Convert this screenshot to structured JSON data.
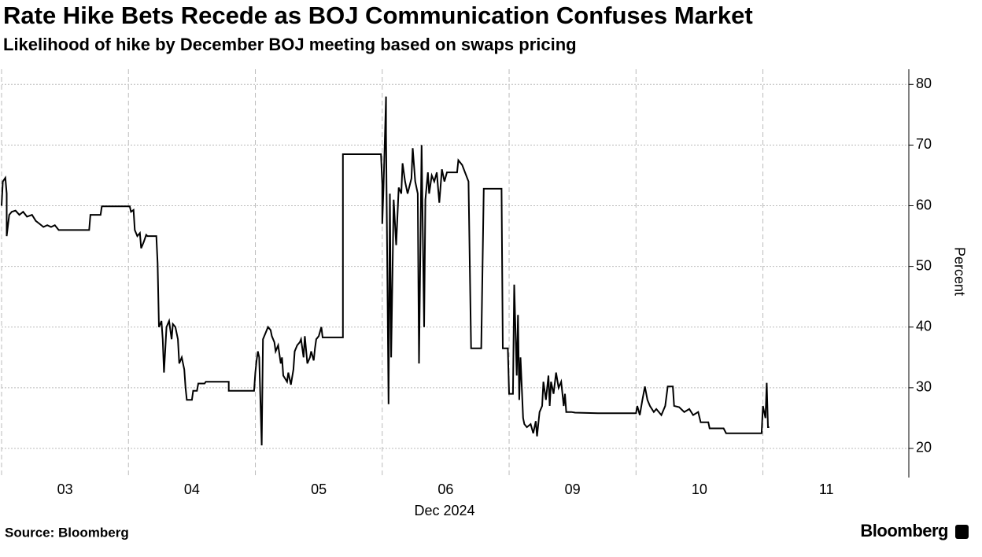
{
  "chart_data": {
    "type": "line",
    "title": "Rate Hike Bets Recede as BOJ Communication Confuses Market",
    "subtitle": "Likelihood of hike by December BOJ meeting based on swaps pricing",
    "y_label": "Percent",
    "x_label": "Dec 2024",
    "source": "Source: Bloomberg",
    "logo": "Bloomberg",
    "color": "#000000",
    "grid": true,
    "xlim": [
      0,
      7.15
    ],
    "xticks": [
      {
        "value": 0.5,
        "label": "03"
      },
      {
        "value": 1.5,
        "label": "04"
      },
      {
        "value": 2.5,
        "label": "05"
      },
      {
        "value": 3.5,
        "label": "06"
      },
      {
        "value": 4.5,
        "label": "09"
      },
      {
        "value": 5.5,
        "label": "10"
      },
      {
        "value": 6.5,
        "label": "11"
      }
    ],
    "ylim": [
      15.2,
      82.5
    ],
    "yticks": [
      20,
      30,
      40,
      50,
      60,
      70,
      80
    ],
    "x": [
      0.0,
      0.01,
      0.03,
      0.04,
      0.04,
      0.06,
      0.08,
      0.11,
      0.14,
      0.17,
      0.2,
      0.24,
      0.27,
      0.3,
      0.33,
      0.36,
      0.39,
      0.42,
      0.45,
      0.69,
      0.7,
      0.78,
      0.79,
      1.01,
      1.02,
      1.04,
      1.05,
      1.07,
      1.09,
      1.1,
      1.12,
      1.14,
      1.15,
      1.22,
      1.23,
      1.24,
      1.26,
      1.27,
      1.28,
      1.3,
      1.32,
      1.34,
      1.35,
      1.37,
      1.39,
      1.4,
      1.42,
      1.44,
      1.45,
      1.46,
      1.5,
      1.51,
      1.54,
      1.55,
      1.6,
      1.61,
      1.79,
      1.79,
      1.99,
      2.0,
      2.01,
      2.02,
      2.03,
      2.05,
      2.06,
      2.08,
      2.1,
      2.12,
      2.13,
      2.15,
      2.16,
      2.18,
      2.2,
      2.21,
      2.22,
      2.25,
      2.26,
      2.28,
      2.3,
      2.31,
      2.33,
      2.35,
      2.36,
      2.38,
      2.39,
      2.41,
      2.43,
      2.44,
      2.46,
      2.47,
      2.48,
      2.5,
      2.52,
      2.53,
      2.69,
      2.69,
      2.99,
      3.0,
      3.0,
      3.01,
      3.03,
      3.03,
      3.05,
      3.06,
      3.07,
      3.09,
      3.11,
      3.13,
      3.15,
      3.16,
      3.18,
      3.2,
      3.23,
      3.24,
      3.26,
      3.28,
      3.29,
      3.31,
      3.33,
      3.34,
      3.36,
      3.37,
      3.39,
      3.41,
      3.43,
      3.45,
      3.47,
      3.49,
      3.51,
      3.55,
      3.59,
      3.6,
      3.63,
      3.68,
      3.7,
      3.78,
      3.8,
      3.94,
      3.95,
      3.99,
      4.0,
      4.03,
      4.04,
      4.06,
      4.07,
      4.08,
      4.09,
      4.11,
      4.12,
      4.14,
      4.17,
      4.19,
      4.21,
      4.22,
      4.24,
      4.26,
      4.27,
      4.29,
      4.31,
      4.32,
      4.33,
      4.35,
      4.37,
      4.39,
      4.41,
      4.43,
      4.44,
      4.45,
      4.49,
      4.52,
      4.7,
      5.0,
      5.01,
      5.03,
      5.05,
      5.07,
      5.09,
      5.11,
      5.14,
      5.16,
      5.2,
      5.23,
      5.25,
      5.29,
      5.3,
      5.34,
      5.38,
      5.42,
      5.45,
      5.49,
      5.51,
      5.57,
      5.58,
      5.69,
      5.71,
      5.99,
      6.0,
      6.02,
      6.03,
      6.04,
      6.05
    ],
    "values": [
      60,
      64,
      64.6,
      62,
      55,
      58.5,
      59,
      59.2,
      58.5,
      59,
      58.2,
      58.5,
      57.5,
      57,
      56.5,
      56.8,
      56.5,
      56.8,
      56,
      56,
      58.5,
      58.5,
      59.9,
      59.9,
      59,
      59.3,
      56,
      55,
      55.5,
      53,
      54,
      55.2,
      55,
      55,
      50.5,
      40,
      41,
      38,
      32.5,
      40,
      41,
      38,
      40.5,
      40,
      38,
      34,
      35,
      33,
      30,
      28,
      28,
      29.5,
      29.5,
      30.7,
      30.7,
      31,
      31,
      29.5,
      29.5,
      32.5,
      34.5,
      36,
      35,
      20.5,
      38,
      39,
      40,
      39.5,
      38.5,
      37.5,
      36,
      37,
      34,
      35,
      32,
      31,
      32.5,
      30.5,
      33,
      36,
      37,
      37.5,
      38,
      35,
      38.5,
      34,
      35,
      36,
      34.5,
      36.5,
      38,
      38.5,
      40,
      38.3,
      38.3,
      68.5,
      68.5,
      63.5,
      57,
      63,
      78,
      72,
      27.3,
      62,
      35,
      61,
      53.5,
      63,
      62,
      67,
      64,
      62,
      64.5,
      69.5,
      64,
      62,
      34,
      70,
      40,
      61,
      65.5,
      62,
      65,
      64,
      65.5,
      60.5,
      66,
      64,
      65.5,
      65.5,
      65.5,
      67.5,
      66.7,
      64,
      36.5,
      36.5,
      62.8,
      62.8,
      36.5,
      36.5,
      29,
      29,
      47,
      32,
      42,
      28,
      35,
      25,
      24,
      23.5,
      24,
      22.5,
      24.5,
      22,
      26,
      27,
      31,
      28,
      32,
      27,
      31,
      29,
      32.5,
      30,
      31,
      27,
      29,
      26,
      26,
      25.9,
      25.8,
      25.8,
      27,
      25.5,
      28,
      30.2,
      28,
      27,
      26,
      26.5,
      25.5,
      27,
      30.2,
      30.2,
      27,
      26.8,
      26,
      26.5,
      25.5,
      26,
      24.3,
      24.3,
      23.3,
      23.3,
      22.5,
      22.5,
      27,
      25,
      30.8,
      23.5,
      23.5
    ]
  }
}
